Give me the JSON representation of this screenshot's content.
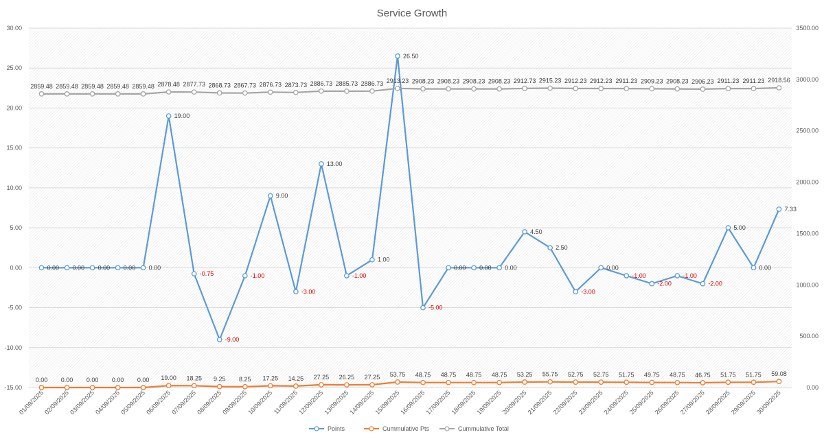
{
  "chart_data": {
    "type": "line",
    "title": "Service Growth",
    "categories": [
      "01/09/2025",
      "02/09/2025",
      "03/09/2025",
      "04/09/2025",
      "05/09/2025",
      "06/09/2025",
      "07/09/2025",
      "08/09/2025",
      "09/09/2025",
      "10/09/2025",
      "11/09/2025",
      "12/09/2025",
      "13/09/2025",
      "14/09/2025",
      "15/09/2025",
      "16/09/2025",
      "17/09/2025",
      "18/09/2025",
      "19/09/2025",
      "20/09/2025",
      "21/09/2025",
      "22/09/2025",
      "23/09/2025",
      "24/09/2025",
      "25/09/2025",
      "26/09/2025",
      "27/09/2025",
      "28/09/2025",
      "29/09/2025",
      "30/09/2025"
    ],
    "y_left": {
      "min": -15,
      "max": 30,
      "step": 5,
      "tick_labels": [
        "-15.00",
        "-10.00",
        "-5.00",
        "0.00",
        "5.00",
        "10.00",
        "15.00",
        "20.00",
        "25.00",
        "30.00"
      ]
    },
    "y_right": {
      "min": 0,
      "max": 3500,
      "step": 500,
      "tick_labels": [
        "0.00",
        "500.00",
        "1000.00",
        "1500.00",
        "2000.00",
        "2500.00",
        "3000.00",
        "3500.00"
      ]
    },
    "grid": true,
    "legend_position": "bottom",
    "series": [
      {
        "name": "Points",
        "axis": "left",
        "color": "#5b9bd5",
        "values": [
          0,
          0,
          0,
          0,
          0,
          19,
          -0.75,
          -9,
          -1,
          9,
          -3,
          13,
          -1,
          1,
          26.5,
          -5,
          0,
          0,
          0,
          4.5,
          2.5,
          -3,
          0,
          -1,
          -2,
          -1,
          -2,
          5,
          0,
          7.33
        ],
        "labels": [
          "0.00",
          "0.00",
          "0.00",
          "0.00",
          "0.00",
          "19.00",
          "-0.75",
          "-9.00",
          "-1.00",
          "9.00",
          "-3.00",
          "13.00",
          "-1.00",
          "1.00",
          "26.50",
          "-5.00",
          "0.00",
          "0.00",
          "0.00",
          "4.50",
          "2.50",
          "-3.00",
          "0.00",
          "-1.00",
          "-2.00",
          "-1.00",
          "-2.00",
          "5.00",
          "0.00",
          "7.33"
        ]
      },
      {
        "name": "Cummulative Pts",
        "axis": "right",
        "color": "#ed7d31",
        "values": [
          0,
          0,
          0,
          0,
          0,
          19,
          18.25,
          9.25,
          8.25,
          17.25,
          14.25,
          27.25,
          26.25,
          27.25,
          53.75,
          48.75,
          48.75,
          48.75,
          48.75,
          53.25,
          55.75,
          52.75,
          52.75,
          51.75,
          49.75,
          48.75,
          46.75,
          51.75,
          51.75,
          59.08
        ],
        "labels": [
          "0.00",
          "0.00",
          "0.00",
          "0.00",
          "0.00",
          "19.00",
          "18.25",
          "9.25",
          "8.25",
          "17.25",
          "14.25",
          "27.25",
          "26.25",
          "27.25",
          "53.75",
          "48.75",
          "48.75",
          "48.75",
          "48.75",
          "53.25",
          "55.75",
          "52.75",
          "52.75",
          "51.75",
          "49.75",
          "48.75",
          "46.75",
          "51.75",
          "51.75",
          "59.08"
        ]
      },
      {
        "name": "Cummulative Total",
        "axis": "right",
        "color": "#a5a5a5",
        "values": [
          2859.48,
          2859.48,
          2859.48,
          2859.48,
          2859.48,
          2878.48,
          2877.73,
          2868.73,
          2867.73,
          2876.73,
          2873.73,
          2886.73,
          2885.73,
          2886.73,
          2913.23,
          2908.23,
          2908.23,
          2908.23,
          2908.23,
          2912.73,
          2915.23,
          2912.23,
          2912.23,
          2911.23,
          2909.23,
          2908.23,
          2906.23,
          2911.23,
          2911.23,
          2918.56
        ],
        "labels": [
          "2859.48",
          "2859.48",
          "2859.48",
          "2859.48",
          "2859.48",
          "2878.48",
          "2877.73",
          "2868.73",
          "2867.73",
          "2876.73",
          "2873.73",
          "2886.73",
          "2885.73",
          "2886.73",
          "2913.23",
          "2908.23",
          "2908.23",
          "2908.23",
          "2908.23",
          "2912.73",
          "2915.23",
          "2912.23",
          "2912.23",
          "2911.23",
          "2909.23",
          "2908.23",
          "2906.23",
          "2911.23",
          "2911.23",
          "2918.56"
        ]
      }
    ],
    "negative_label_color": "#e00000"
  }
}
